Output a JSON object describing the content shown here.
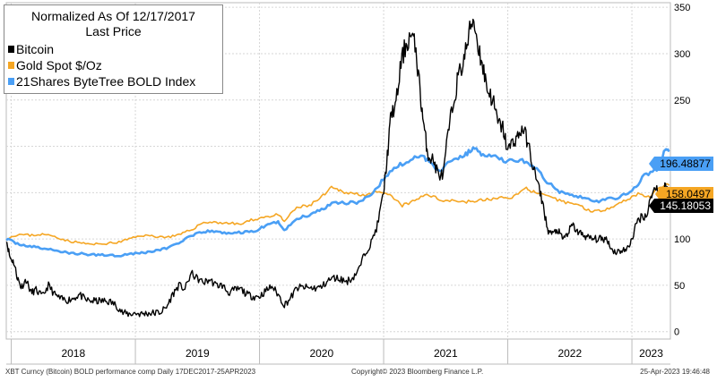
{
  "chart_data": {
    "type": "line",
    "title": "Normalized As Of 12/17/2017",
    "subtitle": "Last Price",
    "x_tick_labels": [
      "2018",
      "2019",
      "2020",
      "2021",
      "2022",
      "2023"
    ],
    "y_ticks": [
      0,
      50,
      100,
      150,
      200,
      250,
      300,
      350
    ],
    "y_tick_labels": [
      "0",
      "50",
      "100",
      "150",
      "",
      "250",
      "300",
      "350"
    ],
    "ylim": [
      -8,
      355
    ],
    "xlim": [
      2017.96,
      2023.31
    ],
    "grid": true,
    "legend_position": "top-left",
    "series": [
      {
        "name": "Bitcoin",
        "color": "#000000",
        "last_label": "145.18053",
        "points": [
          [
            2017.96,
            100
          ],
          [
            2017.99,
            80
          ],
          [
            2018.02,
            75
          ],
          [
            2018.05,
            58
          ],
          [
            2018.08,
            48
          ],
          [
            2018.12,
            56
          ],
          [
            2018.16,
            42
          ],
          [
            2018.2,
            45
          ],
          [
            2018.25,
            38
          ],
          [
            2018.3,
            50
          ],
          [
            2018.35,
            40
          ],
          [
            2018.4,
            35
          ],
          [
            2018.45,
            34
          ],
          [
            2018.5,
            36
          ],
          [
            2018.55,
            40
          ],
          [
            2018.6,
            34
          ],
          [
            2018.65,
            33
          ],
          [
            2018.7,
            33
          ],
          [
            2018.75,
            33
          ],
          [
            2018.8,
            32
          ],
          [
            2018.85,
            28
          ],
          [
            2018.9,
            20
          ],
          [
            2018.95,
            19
          ],
          [
            2019.0,
            20
          ],
          [
            2019.05,
            19
          ],
          [
            2019.1,
            20
          ],
          [
            2019.15,
            20
          ],
          [
            2019.2,
            21
          ],
          [
            2019.25,
            26
          ],
          [
            2019.3,
            40
          ],
          [
            2019.35,
            50
          ],
          [
            2019.4,
            46
          ],
          [
            2019.45,
            63
          ],
          [
            2019.5,
            57
          ],
          [
            2019.55,
            53
          ],
          [
            2019.6,
            56
          ],
          [
            2019.65,
            50
          ],
          [
            2019.7,
            50
          ],
          [
            2019.75,
            42
          ],
          [
            2019.8,
            45
          ],
          [
            2019.85,
            46
          ],
          [
            2019.9,
            40
          ],
          [
            2019.95,
            38
          ],
          [
            2020.0,
            38
          ],
          [
            2020.05,
            44
          ],
          [
            2020.1,
            49
          ],
          [
            2020.15,
            40
          ],
          [
            2020.2,
            29
          ],
          [
            2020.25,
            36
          ],
          [
            2020.3,
            47
          ],
          [
            2020.35,
            48
          ],
          [
            2020.4,
            47
          ],
          [
            2020.45,
            47
          ],
          [
            2020.5,
            48
          ],
          [
            2020.55,
            55
          ],
          [
            2020.6,
            58
          ],
          [
            2020.65,
            57
          ],
          [
            2020.7,
            54
          ],
          [
            2020.75,
            58
          ],
          [
            2020.8,
            67
          ],
          [
            2020.85,
            85
          ],
          [
            2020.9,
            96
          ],
          [
            2020.95,
            115
          ],
          [
            2021.0,
            150
          ],
          [
            2021.03,
            190
          ],
          [
            2021.06,
            235
          ],
          [
            2021.1,
            245
          ],
          [
            2021.14,
            290
          ],
          [
            2021.18,
            310
          ],
          [
            2021.22,
            320
          ],
          [
            2021.26,
            305
          ],
          [
            2021.3,
            250
          ],
          [
            2021.33,
            215
          ],
          [
            2021.36,
            190
          ],
          [
            2021.4,
            185
          ],
          [
            2021.44,
            170
          ],
          [
            2021.48,
            168
          ],
          [
            2021.52,
            215
          ],
          [
            2021.56,
            245
          ],
          [
            2021.6,
            275
          ],
          [
            2021.64,
            290
          ],
          [
            2021.68,
            315
          ],
          [
            2021.72,
            340
          ],
          [
            2021.76,
            310
          ],
          [
            2021.8,
            285
          ],
          [
            2021.84,
            260
          ],
          [
            2021.88,
            250
          ],
          [
            2021.92,
            225
          ],
          [
            2021.96,
            220
          ],
          [
            2022.0,
            195
          ],
          [
            2022.04,
            205
          ],
          [
            2022.08,
            210
          ],
          [
            2022.12,
            220
          ],
          [
            2022.16,
            205
          ],
          [
            2022.2,
            180
          ],
          [
            2022.24,
            160
          ],
          [
            2022.28,
            140
          ],
          [
            2022.32,
            110
          ],
          [
            2022.36,
            105
          ],
          [
            2022.4,
            110
          ],
          [
            2022.44,
            100
          ],
          [
            2022.48,
            105
          ],
          [
            2022.52,
            115
          ],
          [
            2022.56,
            108
          ],
          [
            2022.6,
            105
          ],
          [
            2022.64,
            102
          ],
          [
            2022.68,
            100
          ],
          [
            2022.72,
            100
          ],
          [
            2022.76,
            100
          ],
          [
            2022.8,
            100
          ],
          [
            2022.84,
            88
          ],
          [
            2022.88,
            86
          ],
          [
            2022.92,
            88
          ],
          [
            2022.96,
            88
          ],
          [
            2023.0,
            100
          ],
          [
            2023.04,
            118
          ],
          [
            2023.08,
            125
          ],
          [
            2023.12,
            125
          ],
          [
            2023.16,
            150
          ],
          [
            2023.2,
            155
          ],
          [
            2023.24,
            150
          ],
          [
            2023.27,
            160
          ],
          [
            2023.3,
            145
          ]
        ]
      },
      {
        "name": "Gold Spot $/Oz",
        "color": "#f5a623",
        "last_label": "158.0497",
        "points": [
          [
            2017.96,
            100
          ],
          [
            2018.05,
            105
          ],
          [
            2018.15,
            104
          ],
          [
            2018.25,
            105
          ],
          [
            2018.35,
            103
          ],
          [
            2018.45,
            98
          ],
          [
            2018.55,
            96
          ],
          [
            2018.65,
            94
          ],
          [
            2018.75,
            95
          ],
          [
            2018.85,
            96
          ],
          [
            2018.95,
            100
          ],
          [
            2019.05,
            104
          ],
          [
            2019.15,
            103
          ],
          [
            2019.25,
            102
          ],
          [
            2019.35,
            104
          ],
          [
            2019.45,
            110
          ],
          [
            2019.55,
            118
          ],
          [
            2019.65,
            118
          ],
          [
            2019.75,
            117
          ],
          [
            2019.85,
            116
          ],
          [
            2019.95,
            121
          ],
          [
            2020.05,
            124
          ],
          [
            2020.15,
            126
          ],
          [
            2020.2,
            119
          ],
          [
            2020.3,
            134
          ],
          [
            2020.4,
            136
          ],
          [
            2020.5,
            145
          ],
          [
            2020.58,
            155
          ],
          [
            2020.65,
            152
          ],
          [
            2020.75,
            149
          ],
          [
            2020.85,
            148
          ],
          [
            2020.95,
            150
          ],
          [
            2021.05,
            147
          ],
          [
            2021.15,
            136
          ],
          [
            2021.25,
            141
          ],
          [
            2021.35,
            149
          ],
          [
            2021.45,
            142
          ],
          [
            2021.55,
            142
          ],
          [
            2021.65,
            140
          ],
          [
            2021.75,
            141
          ],
          [
            2021.85,
            143
          ],
          [
            2021.95,
            144
          ],
          [
            2022.05,
            146
          ],
          [
            2022.15,
            155
          ],
          [
            2022.22,
            150
          ],
          [
            2022.35,
            144
          ],
          [
            2022.45,
            140
          ],
          [
            2022.55,
            138
          ],
          [
            2022.65,
            131
          ],
          [
            2022.75,
            130
          ],
          [
            2022.85,
            136
          ],
          [
            2022.95,
            142
          ],
          [
            2023.05,
            149
          ],
          [
            2023.15,
            145
          ],
          [
            2023.22,
            157
          ],
          [
            2023.3,
            158
          ]
        ]
      },
      {
        "name": "21Shares ByteTree BOLD Index",
        "color": "#4a9ff5",
        "last_label": "196.48877",
        "points": [
          [
            2017.96,
            100
          ],
          [
            2018.05,
            95
          ],
          [
            2018.15,
            92
          ],
          [
            2018.25,
            90
          ],
          [
            2018.35,
            88
          ],
          [
            2018.45,
            85
          ],
          [
            2018.55,
            84
          ],
          [
            2018.65,
            83
          ],
          [
            2018.75,
            83
          ],
          [
            2018.85,
            82
          ],
          [
            2018.95,
            84
          ],
          [
            2019.05,
            85
          ],
          [
            2019.15,
            87
          ],
          [
            2019.25,
            90
          ],
          [
            2019.35,
            96
          ],
          [
            2019.45,
            103
          ],
          [
            2019.55,
            108
          ],
          [
            2019.65,
            108
          ],
          [
            2019.75,
            106
          ],
          [
            2019.85,
            107
          ],
          [
            2019.95,
            108
          ],
          [
            2020.05,
            114
          ],
          [
            2020.15,
            119
          ],
          [
            2020.2,
            109
          ],
          [
            2020.3,
            122
          ],
          [
            2020.4,
            126
          ],
          [
            2020.5,
            132
          ],
          [
            2020.6,
            140
          ],
          [
            2020.7,
            139
          ],
          [
            2020.8,
            140
          ],
          [
            2020.9,
            146
          ],
          [
            2021.0,
            165
          ],
          [
            2021.1,
            178
          ],
          [
            2021.2,
            184
          ],
          [
            2021.3,
            190
          ],
          [
            2021.38,
            183
          ],
          [
            2021.45,
            173
          ],
          [
            2021.55,
            186
          ],
          [
            2021.65,
            190
          ],
          [
            2021.72,
            198
          ],
          [
            2021.8,
            191
          ],
          [
            2021.9,
            188
          ],
          [
            2022.0,
            184
          ],
          [
            2022.1,
            185
          ],
          [
            2022.2,
            180
          ],
          [
            2022.3,
            164
          ],
          [
            2022.4,
            152
          ],
          [
            2022.5,
            149
          ],
          [
            2022.6,
            145
          ],
          [
            2022.7,
            140
          ],
          [
            2022.8,
            143
          ],
          [
            2022.9,
            145
          ],
          [
            2023.0,
            152
          ],
          [
            2023.1,
            168
          ],
          [
            2023.2,
            176
          ],
          [
            2023.27,
            196
          ],
          [
            2023.3,
            196
          ]
        ]
      }
    ]
  },
  "footer": {
    "left": "XBT Curncy (Bitcoin) BOLD performance comp  Daily 17DEC2017-25APR2023",
    "center": "Copyright© 2023 Bloomberg Finance L.P.",
    "right": "25-Apr-2023 19:46:48"
  }
}
